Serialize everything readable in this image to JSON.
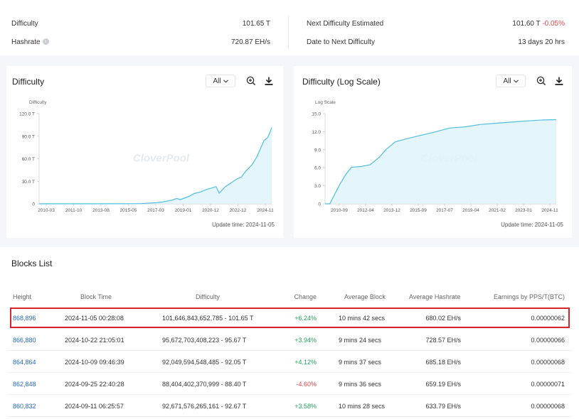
{
  "stats": {
    "difficulty_label": "Difficulty",
    "difficulty_value": "101.65 T",
    "hashrate_label": "Hashrate",
    "hashrate_value": "720.87 EH/s",
    "next_label": "Next Difficulty Estimated",
    "next_value": "101.60 T",
    "next_change": "-0.05%",
    "date_label": "Date to Next Difficulty",
    "date_value": "13 days 20 hrs"
  },
  "charts": [
    {
      "title": "Difficulty",
      "range": "All",
      "update_time": "Update time: 2024-11-05",
      "watermark": "CloverPool",
      "chart_data": {
        "type": "area",
        "ylabel": "Difficulty",
        "ylim": [
          0,
          120
        ],
        "y_ticks": [
          "0",
          "30.0 T",
          "60.0 T",
          "90.0 T",
          "120.0 T"
        ],
        "x_ticks": [
          "2010-03",
          "2011-10",
          "2013-08",
          "2015-05",
          "2017-03",
          "2019-01",
          "2020-12",
          "2022-12",
          "2024-11"
        ],
        "x_start": 2010.0,
        "x_end": 2024.85,
        "points": [
          [
            2010.0,
            0
          ],
          [
            2013.5,
            0
          ],
          [
            2015.0,
            0.1
          ],
          [
            2016.5,
            0.3
          ],
          [
            2017.5,
            1.5
          ],
          [
            2017.9,
            2.5
          ],
          [
            2018.5,
            5
          ],
          [
            2018.8,
            7.2
          ],
          [
            2019.0,
            5.6
          ],
          [
            2019.6,
            10.2
          ],
          [
            2019.9,
            13.7
          ],
          [
            2020.3,
            15.8
          ],
          [
            2020.7,
            19.2
          ],
          [
            2020.95,
            20.6
          ],
          [
            2021.3,
            22.9
          ],
          [
            2021.5,
            14.3
          ],
          [
            2021.9,
            23.1
          ],
          [
            2022.3,
            28.3
          ],
          [
            2022.6,
            32.8
          ],
          [
            2022.9,
            35.4
          ],
          [
            2023.2,
            43.6
          ],
          [
            2023.6,
            52.3
          ],
          [
            2023.9,
            62.5
          ],
          [
            2024.1,
            72.0
          ],
          [
            2024.35,
            84.0
          ],
          [
            2024.6,
            88.4
          ],
          [
            2024.75,
            95.7
          ],
          [
            2024.85,
            101.65
          ]
        ]
      }
    },
    {
      "title": "Difficulty (Log Scale)",
      "range": "All",
      "update_time": "Update time: 2024-11-05",
      "watermark": "CloverPool",
      "chart_data": {
        "type": "area",
        "ylabel": "Log Scale",
        "ylim": [
          0,
          15
        ],
        "y_ticks": [
          "0",
          "3.0",
          "6.0",
          "9.0",
          "12.0",
          "15.0"
        ],
        "x_ticks": [
          "2010-09",
          "2012-04",
          "2013-12",
          "2015-09",
          "2017-07",
          "2019-04",
          "2021-02",
          "2023-01",
          "2024-11"
        ],
        "x_start": 2010.0,
        "x_end": 2024.85,
        "points": [
          [
            2010.0,
            0
          ],
          [
            2010.3,
            0
          ],
          [
            2010.6,
            1.5
          ],
          [
            2010.9,
            3.0
          ],
          [
            2011.3,
            4.8
          ],
          [
            2011.7,
            6.1
          ],
          [
            2012.3,
            6.2
          ],
          [
            2012.9,
            6.5
          ],
          [
            2013.5,
            7.8
          ],
          [
            2013.9,
            9.0
          ],
          [
            2014.5,
            10.3
          ],
          [
            2015.2,
            10.8
          ],
          [
            2016.0,
            11.3
          ],
          [
            2017.0,
            11.9
          ],
          [
            2018.0,
            12.6
          ],
          [
            2019.0,
            12.8
          ],
          [
            2020.0,
            13.2
          ],
          [
            2021.0,
            13.4
          ],
          [
            2022.0,
            13.6
          ],
          [
            2023.0,
            13.8
          ],
          [
            2024.0,
            13.95
          ],
          [
            2024.85,
            14.0
          ]
        ]
      }
    }
  ],
  "blocks": {
    "title": "Blocks List",
    "headers": [
      "Height",
      "Block Time",
      "Difficulty",
      "Change",
      "Average Block",
      "Average Hashrate",
      "Earnings by PPS/T(BTC)"
    ],
    "rows": [
      {
        "height": "868,896",
        "time": "2024-11-05 00:28:08",
        "difficulty": "101,646,843,652,785 - 101.65 T",
        "change": "+6.24%",
        "avg_block": "10 mins 42 secs",
        "avg_hashrate": "680.02 EH/s",
        "earnings": "0.00000062"
      },
      {
        "height": "866,880",
        "time": "2024-10-22 21:05:01",
        "difficulty": "95,672,703,408,223 - 95.67 T",
        "change": "+3.94%",
        "avg_block": "9 mins 24 secs",
        "avg_hashrate": "728.57 EH/s",
        "earnings": "0.00000066"
      },
      {
        "height": "864,864",
        "time": "2024-10-09 09:46:39",
        "difficulty": "92,049,594,548,485 - 92.05 T",
        "change": "+4.12%",
        "avg_block": "9 mins 37 secs",
        "avg_hashrate": "685.18 EH/s",
        "earnings": "0.00000068"
      },
      {
        "height": "862,848",
        "time": "2024-09-25 22:40:28",
        "difficulty": "88,404,402,370,999 - 88.40 T",
        "change": "-4.60%",
        "avg_block": "9 mins 36 secs",
        "avg_hashrate": "659.19 EH/s",
        "earnings": "0.00000071"
      },
      {
        "height": "860,832",
        "time": "2024-09-11 06:25:57",
        "difficulty": "92,671,576,265,161 - 92.67 T",
        "change": "+3.58%",
        "avg_block": "10 mins 28 secs",
        "avg_hashrate": "633.79 EH/s",
        "earnings": "0.00000068"
      }
    ]
  },
  "colors": {
    "line": "#4fbfe0",
    "fill": "#dff3fa",
    "positive": "#22a45d",
    "negative": "#e5484d",
    "link": "#2468c9",
    "highlight": "#d9232d"
  }
}
